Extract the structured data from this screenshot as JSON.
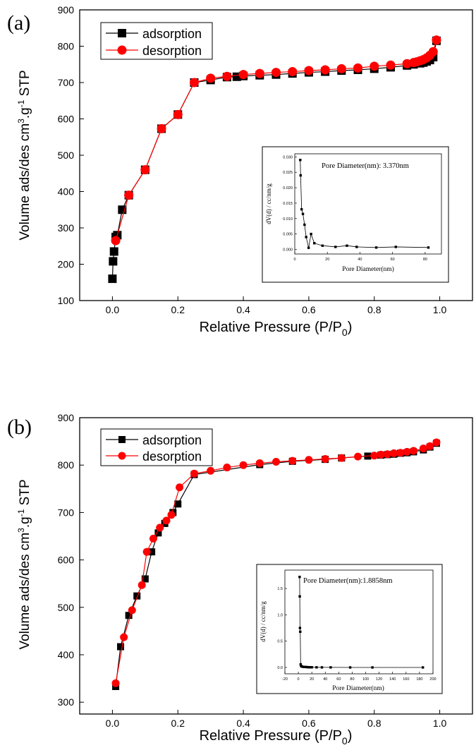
{
  "chart_data": [
    {
      "type": "line",
      "panel_label": "(a)",
      "xlabel": "Relative Pressure (P/P",
      "xlabel_sub": "0",
      "xlabel_end": ")",
      "ylabel": "Volume ads/des cm",
      "ylabel_sup1": "3",
      "ylabel_mid": ".g",
      "ylabel_sup2": "-1",
      "ylabel_end": " STP",
      "xlim": [
        -0.1,
        1.1
      ],
      "ylim": [
        100,
        900
      ],
      "xticks": [
        0.0,
        0.2,
        0.4,
        0.6,
        0.8,
        1.0
      ],
      "xtick_labels": [
        "0.0",
        "0.2",
        "0.4",
        "0.6",
        "0.8",
        "1.0"
      ],
      "yticks": [
        100,
        200,
        300,
        400,
        500,
        600,
        700,
        800,
        900
      ],
      "ytick_labels": [
        "100",
        "200",
        "300",
        "400",
        "500",
        "600",
        "700",
        "800",
        "900"
      ],
      "legend_position": "top-left",
      "series": [
        {
          "name": "adsorption",
          "color": "#000000",
          "marker": "square",
          "x": [
            0.0,
            0.002,
            0.005,
            0.01,
            0.015,
            0.03,
            0.05,
            0.1,
            0.15,
            0.2,
            0.25,
            0.3,
            0.35,
            0.38,
            0.4,
            0.45,
            0.5,
            0.55,
            0.6,
            0.65,
            0.7,
            0.75,
            0.8,
            0.85,
            0.9,
            0.92,
            0.94,
            0.95,
            0.96,
            0.97,
            0.98,
            0.99
          ],
          "y": [
            160,
            208,
            235,
            275,
            280,
            350,
            390,
            460,
            573,
            612,
            700,
            707,
            715,
            716,
            718,
            720,
            722,
            725,
            728,
            730,
            733,
            735,
            738,
            742,
            747,
            750,
            753,
            755,
            758,
            762,
            770,
            815
          ]
        },
        {
          "name": "desorption",
          "color": "#ff0000",
          "marker": "circle",
          "x": [
            0.99,
            0.98,
            0.97,
            0.96,
            0.95,
            0.94,
            0.93,
            0.92,
            0.9,
            0.85,
            0.8,
            0.75,
            0.7,
            0.65,
            0.6,
            0.55,
            0.5,
            0.45,
            0.4,
            0.35,
            0.3,
            0.25,
            0.2,
            0.15,
            0.1,
            0.05,
            0.01
          ],
          "y": [
            817,
            785,
            775,
            768,
            763,
            760,
            757,
            755,
            752,
            748,
            745,
            740,
            738,
            735,
            733,
            730,
            728,
            725,
            722,
            717,
            712,
            700,
            612,
            573,
            460,
            390,
            265
          ]
        }
      ],
      "inset": {
        "type": "line",
        "annotation": "Pore Diameter(nm): 3.370nm",
        "xlabel": "Pore Diameter(nm)",
        "ylabel": "dV(d) / cc/nm/g",
        "xlim": [
          0,
          90
        ],
        "ylim": [
          -0.0015,
          0.031
        ],
        "xticks": [
          0,
          20,
          40,
          60,
          80
        ],
        "xtick_labels": [
          "0",
          "20",
          "40",
          "60",
          "80"
        ],
        "yticks": [
          0.0,
          0.005,
          0.01,
          0.015,
          0.02,
          0.025,
          0.03
        ],
        "ytick_labels": [
          "0.000",
          "0.005",
          "0.010",
          "0.015",
          "0.020",
          "0.025",
          "0.030"
        ],
        "x": [
          3.37,
          3.6,
          4.2,
          5.0,
          6.0,
          7.0,
          8.5,
          10,
          12,
          17,
          25,
          32,
          38,
          50,
          62,
          82
        ],
        "y": [
          0.029,
          0.024,
          0.013,
          0.0115,
          0.008,
          0.004,
          0.0005,
          0.005,
          0.002,
          0.0012,
          0.0008,
          0.0012,
          0.0008,
          0.0006,
          0.0008,
          0.0006
        ]
      }
    },
    {
      "type": "line",
      "panel_label": "(b)",
      "xlabel": "Relative Pressure (P/P",
      "xlabel_sub": "0",
      "xlabel_end": ")",
      "ylabel": "Volume ads/des cm",
      "ylabel_sup1": "3",
      "ylabel_mid": ".g",
      "ylabel_sup2": "-1",
      "ylabel_end": " STP",
      "xlim": [
        -0.1,
        1.1
      ],
      "ylim": [
        275,
        900
      ],
      "xticks": [
        0.0,
        0.2,
        0.4,
        0.6,
        0.8,
        1.0
      ],
      "xtick_labels": [
        "0.0",
        "0.2",
        "0.4",
        "0.6",
        "0.8",
        "1.0"
      ],
      "yticks": [
        300,
        400,
        500,
        600,
        700,
        800,
        900
      ],
      "ytick_labels": [
        "300",
        "400",
        "500",
        "600",
        "700",
        "800",
        "900"
      ],
      "legend_position": "top-left",
      "series": [
        {
          "name": "adsorption",
          "color": "#000000",
          "marker": "square",
          "x": [
            0.01,
            0.025,
            0.05,
            0.075,
            0.1,
            0.12,
            0.14,
            0.16,
            0.185,
            0.2,
            0.25,
            0.45,
            0.55,
            0.65,
            0.7,
            0.78,
            0.82,
            0.84,
            0.86,
            0.88,
            0.9,
            0.92,
            0.95,
            0.97,
            0.99
          ],
          "y": [
            333,
            417,
            483,
            524,
            560,
            617,
            657,
            677,
            700,
            718,
            780,
            801,
            808,
            812,
            815,
            819,
            821,
            822,
            823,
            825,
            826,
            828,
            832,
            838,
            846
          ]
        },
        {
          "name": "desorption",
          "color": "#ff0000",
          "marker": "circle",
          "x": [
            0.99,
            0.97,
            0.95,
            0.92,
            0.9,
            0.88,
            0.86,
            0.84,
            0.82,
            0.8,
            0.75,
            0.7,
            0.65,
            0.6,
            0.55,
            0.5,
            0.45,
            0.4,
            0.35,
            0.3,
            0.25,
            0.205,
            0.18,
            0.165,
            0.145,
            0.125,
            0.105,
            0.09,
            0.06,
            0.035,
            0.01
          ],
          "y": [
            848,
            840,
            835,
            830,
            828,
            826,
            825,
            823,
            822,
            820,
            818,
            815,
            813,
            811,
            809,
            807,
            804,
            800,
            795,
            788,
            782,
            753,
            695,
            683,
            668,
            645,
            617,
            547,
            494,
            437,
            340
          ]
        }
      ],
      "inset": {
        "type": "line",
        "annotation": "Pore Diameter(nm):1.8858nm",
        "xlabel": "Pore Diameter(nm)",
        "ylabel": "dV(d) / cc/nm/g",
        "xlim": [
          -20,
          200
        ],
        "ylim": [
          -0.12,
          1.85
        ],
        "xticks": [
          -20,
          0,
          20,
          40,
          60,
          80,
          100,
          120,
          140,
          160,
          180,
          200
        ],
        "xtick_labels": [
          "-20",
          "0",
          "20",
          "40",
          "60",
          "80",
          "100",
          "120",
          "140",
          "160",
          "180",
          "200"
        ],
        "yticks": [
          0.0,
          0.5,
          1.0,
          1.5
        ],
        "ytick_labels": [
          "0.0",
          "0.5",
          "1.0",
          "1.5"
        ],
        "x": [
          1.8858,
          2.1,
          2.4,
          2.8,
          3.4,
          4.0,
          5,
          6,
          8,
          10,
          12,
          14,
          16,
          18,
          20,
          27,
          35,
          48,
          77,
          110,
          185
        ],
        "y": [
          1.72,
          1.35,
          0.75,
          0.68,
          0.06,
          0.03,
          0.02,
          0.015,
          0.01,
          0.01,
          0.008,
          0.006,
          0.005,
          0.004,
          0.004,
          0.003,
          0.002,
          0.002,
          0.001,
          0.001,
          0.001
        ]
      }
    }
  ]
}
